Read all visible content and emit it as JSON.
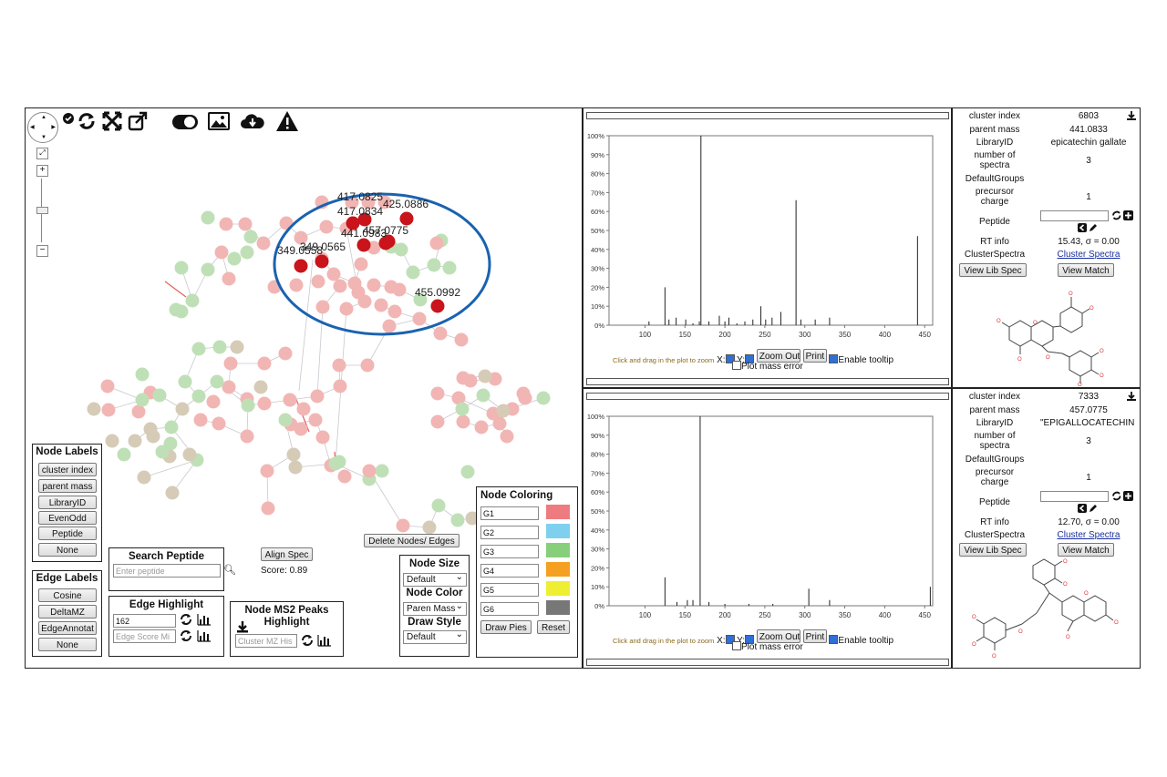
{
  "toolbar": {
    "icons": [
      "check-circle-icon",
      "refresh-icon",
      "fit-screen-icon",
      "external-link-icon",
      "toggle-icon",
      "image-icon",
      "cloud-download-icon",
      "warning-icon"
    ]
  },
  "network": {
    "highlight_labels": [
      "417.0825",
      "425.0886",
      "417.0834",
      "457.0775",
      "441.0983",
      "349.0565",
      "349.0558",
      "455.0992"
    ]
  },
  "node_labels": {
    "title": "Node Labels",
    "buttons": [
      "cluster index",
      "parent mass",
      "LibraryID",
      "EvenOdd",
      "Peptide",
      "None"
    ]
  },
  "edge_labels": {
    "title": "Edge Labels",
    "buttons": [
      "Cosine",
      "DeltaMZ",
      "EdgeAnnotat",
      "None"
    ]
  },
  "search_peptide": {
    "title": "Search Peptide",
    "placeholder": "Enter peptide"
  },
  "align": {
    "button": "Align Spec",
    "score": "Score: 0.89"
  },
  "delete_button": "Delete Nodes/ Edges",
  "edge_highlight": {
    "title": "Edge Highlight",
    "value": "162",
    "placeholder": "Edge Score Mi"
  },
  "ms2_peaks": {
    "title_line1": "Node MS2 Peaks",
    "title_line2": "Highlight",
    "placeholder": "Cluster MZ His"
  },
  "node_size": {
    "title": "Node Size",
    "selected": "Default"
  },
  "node_color": {
    "title": "Node Color",
    "selected": "Paren Mass"
  },
  "draw_style": {
    "title": "Draw Style",
    "selected": "Default"
  },
  "node_coloring": {
    "title": "Node Coloring",
    "groups": [
      {
        "label": "G1",
        "color": "#ee7b7f"
      },
      {
        "label": "G2",
        "color": "#7fd0ee"
      },
      {
        "label": "G3",
        "color": "#88cf7c"
      },
      {
        "label": "G4",
        "color": "#f5a020"
      },
      {
        "label": "G5",
        "color": "#eeee33"
      },
      {
        "label": "G6",
        "color": "#777777"
      }
    ],
    "draw_pies": "Draw Pies",
    "reset": "Reset"
  },
  "spectrum_controls": {
    "hint": "Click and drag in the plot to zoom",
    "x_label": "X:",
    "y_label": "Y:",
    "zoom_out": "Zoom Out",
    "print": "Print",
    "tooltip": "Enable tooltip",
    "mass_error": "Plot mass error"
  },
  "chart_data": [
    {
      "type": "bar",
      "x_ticks": [
        100,
        150,
        200,
        250,
        300,
        350,
        400,
        450
      ],
      "y_ticks": [
        "0%",
        "10%",
        "20%",
        "30%",
        "40%",
        "50%",
        "60%",
        "70%",
        "80%",
        "90%",
        "100%"
      ],
      "xlim": [
        55,
        460
      ],
      "ylim": [
        0,
        100
      ],
      "peaks": [
        {
          "mz": 105,
          "intensity": 2
        },
        {
          "mz": 125,
          "intensity": 20
        },
        {
          "mz": 130,
          "intensity": 3
        },
        {
          "mz": 139,
          "intensity": 4
        },
        {
          "mz": 151,
          "intensity": 3
        },
        {
          "mz": 160,
          "intensity": 1
        },
        {
          "mz": 168,
          "intensity": 2
        },
        {
          "mz": 170,
          "intensity": 100
        },
        {
          "mz": 180,
          "intensity": 2
        },
        {
          "mz": 193,
          "intensity": 5
        },
        {
          "mz": 200,
          "intensity": 2
        },
        {
          "mz": 205,
          "intensity": 4
        },
        {
          "mz": 215,
          "intensity": 1
        },
        {
          "mz": 225,
          "intensity": 2
        },
        {
          "mz": 235,
          "intensity": 3
        },
        {
          "mz": 245,
          "intensity": 10
        },
        {
          "mz": 251,
          "intensity": 3
        },
        {
          "mz": 259,
          "intensity": 4
        },
        {
          "mz": 270,
          "intensity": 7
        },
        {
          "mz": 289,
          "intensity": 66
        },
        {
          "mz": 295,
          "intensity": 3
        },
        {
          "mz": 313,
          "intensity": 3
        },
        {
          "mz": 331,
          "intensity": 4
        },
        {
          "mz": 441,
          "intensity": 47
        }
      ]
    },
    {
      "type": "bar",
      "x_ticks": [
        100,
        150,
        200,
        250,
        300,
        350,
        400,
        450
      ],
      "y_ticks": [
        "0%",
        "10%",
        "20%",
        "30%",
        "40%",
        "50%",
        "60%",
        "70%",
        "80%",
        "90%",
        "100%"
      ],
      "xlim": [
        55,
        460
      ],
      "ylim": [
        0,
        100
      ],
      "peaks": [
        {
          "mz": 125,
          "intensity": 15
        },
        {
          "mz": 140,
          "intensity": 2
        },
        {
          "mz": 153,
          "intensity": 3
        },
        {
          "mz": 160,
          "intensity": 3
        },
        {
          "mz": 169,
          "intensity": 100
        },
        {
          "mz": 180,
          "intensity": 2
        },
        {
          "mz": 200,
          "intensity": 1
        },
        {
          "mz": 230,
          "intensity": 1
        },
        {
          "mz": 260,
          "intensity": 1
        },
        {
          "mz": 305,
          "intensity": 9
        },
        {
          "mz": 331,
          "intensity": 3
        },
        {
          "mz": 457,
          "intensity": 10
        }
      ]
    }
  ],
  "meta_top": {
    "rows": [
      {
        "k": "cluster index",
        "v": "6803"
      },
      {
        "k": "parent mass",
        "v": "441.0833"
      },
      {
        "k": "LibraryID",
        "v": "epicatechin gallate"
      },
      {
        "k": "number of spectra",
        "v": "3"
      },
      {
        "k": "DefaultGroups",
        "v": ""
      },
      {
        "k": "precursor charge",
        "v": "1"
      },
      {
        "k": "Peptide",
        "v": ""
      },
      {
        "k": "RT info",
        "v": "15.43, σ = 0.00"
      },
      {
        "k": "ClusterSpectra",
        "v": "Cluster Spectra"
      }
    ],
    "view_lib": "View Lib Spec",
    "view_match": "View Match"
  },
  "meta_bottom": {
    "rows": [
      {
        "k": "cluster index",
        "v": "7333"
      },
      {
        "k": "parent mass",
        "v": "457.0775"
      },
      {
        "k": "LibraryID",
        "v": "\"EPIGALLOCATECHIN GAL"
      },
      {
        "k": "number of spectra",
        "v": "3"
      },
      {
        "k": "DefaultGroups",
        "v": ""
      },
      {
        "k": "precursor charge",
        "v": "1"
      },
      {
        "k": "Peptide",
        "v": ""
      },
      {
        "k": "RT info",
        "v": "12.70, σ = 0.00"
      },
      {
        "k": "ClusterSpectra",
        "v": "Cluster Spectra"
      }
    ],
    "view_lib": "View Lib Spec",
    "view_match": "View Match"
  }
}
